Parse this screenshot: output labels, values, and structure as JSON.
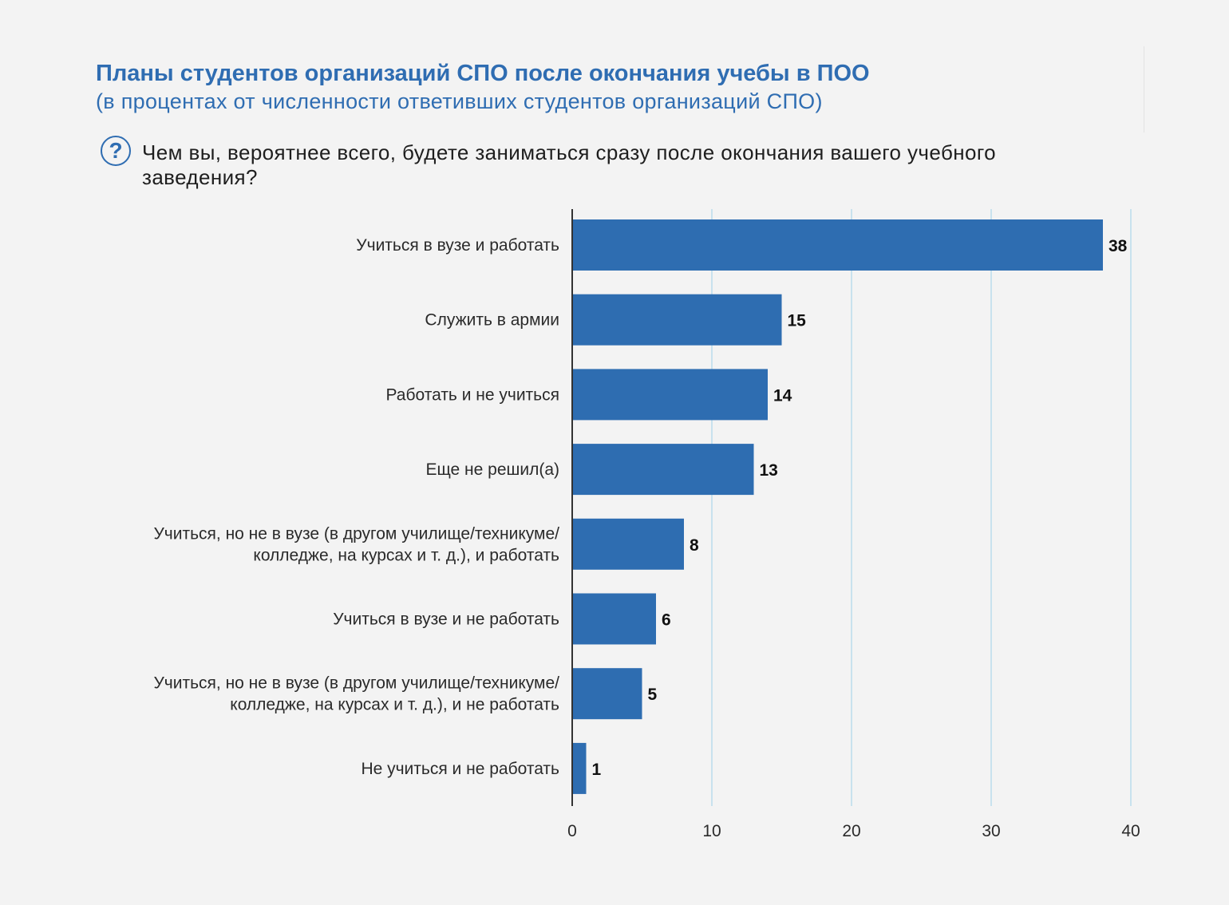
{
  "header": {
    "title": "Планы студентов организаций СПО после окончания учебы в ПОО",
    "subtitle": "(в процентах от численности ответивших студентов организаций СПО)",
    "question_icon": "question-circle-icon",
    "question": "Чем вы, вероятнее всего, будете заниматься сразу после окончания вашего учебного заведения?"
  },
  "colors": {
    "bar": "#2e6db1",
    "grid": "#b9dcec",
    "axis": "#333333",
    "title": "#2f6db2"
  },
  "chart_data": {
    "type": "bar",
    "orientation": "horizontal",
    "title": "Планы студентов организаций СПО после окончания учебы в ПОО",
    "subtitle": "(в процентах от численности ответивших студентов организаций СПО)",
    "categories": [
      [
        "Учиться в вузе и работать"
      ],
      [
        "Служить в армии"
      ],
      [
        "Работать и не учиться"
      ],
      [
        "Еще не решил(а)"
      ],
      [
        "Учиться, но не в вузе (в другом училище/техникуме/",
        "колледже, на курсах и т. д.), и работать"
      ],
      [
        "Учиться в вузе и не работать"
      ],
      [
        "Учиться, но не в вузе (в другом училище/техникуме/",
        "колледже, на курсах и т. д.), и не работать"
      ],
      [
        "Не учиться и не работать"
      ]
    ],
    "values": [
      38,
      15,
      14,
      13,
      8,
      6,
      5,
      1
    ],
    "value_labels": [
      "38",
      "15",
      "14",
      "13",
      "8",
      "6",
      "5",
      "1"
    ],
    "xlim": [
      0,
      40
    ],
    "xticks": [
      0,
      10,
      20,
      30,
      40
    ],
    "xtick_labels": [
      "0",
      "10",
      "20",
      "30",
      "40"
    ],
    "grid": "vertical",
    "legend": "none"
  }
}
